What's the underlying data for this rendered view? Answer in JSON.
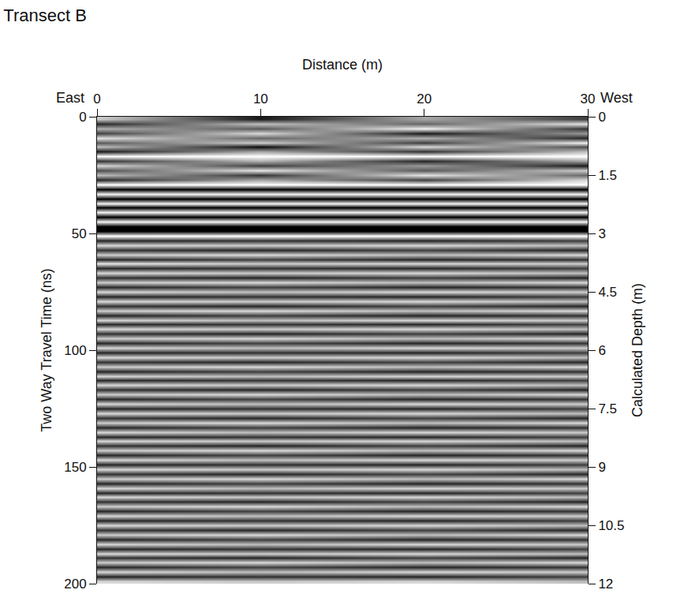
{
  "chart_data": {
    "type": "heatmap",
    "title": "Transect B",
    "x_label": "Distance (m)",
    "y_label": "Two Way Travel Time (ns)",
    "y2_label": "Calculated Depth (m)",
    "annotations": [
      "East",
      "West"
    ],
    "xlim": [
      0,
      30
    ],
    "xticks": [
      0,
      10,
      20,
      30
    ],
    "ylim": [
      0,
      200
    ],
    "yticks": [
      0,
      50,
      100,
      150,
      200
    ],
    "y2lim": [
      0,
      12
    ],
    "y2ticks": [
      0,
      1.5,
      3,
      4.5,
      6,
      7.5,
      9,
      10.5,
      12
    ],
    "colors": [
      "#000000",
      "#ffffff"
    ],
    "zlim": [
      -1,
      1
    ],
    "grid": false,
    "x": [
      0,
      10,
      20,
      30
    ],
    "time": [
      1,
      3,
      5,
      7,
      9,
      11,
      13,
      15,
      17,
      19,
      21,
      23,
      25,
      27,
      29,
      31,
      33,
      35,
      37,
      39,
      41,
      43,
      45,
      47,
      49,
      51,
      53,
      55,
      57,
      59,
      61,
      63,
      65,
      67,
      69,
      71,
      73,
      75,
      77,
      79,
      81,
      83,
      85,
      87,
      89,
      91,
      93,
      95,
      97,
      99,
      101,
      103,
      105,
      107,
      109,
      111,
      113,
      115,
      117,
      119,
      121,
      123,
      125,
      127,
      129,
      131,
      133,
      135,
      137,
      139,
      141,
      143,
      145,
      147,
      149,
      151,
      153,
      155,
      157,
      159,
      161,
      163,
      165,
      167,
      169,
      171,
      173,
      175,
      177,
      179,
      181,
      183,
      185,
      187,
      189,
      191,
      193,
      195,
      197,
      199
    ],
    "cells": [
      [
        0.6,
        -0.8,
        0.3,
        -0.5
      ],
      [
        -0.7,
        0.5,
        -0.2,
        0.8
      ],
      [
        0.4,
        -0.3,
        0.9,
        -0.6
      ],
      [
        -0.5,
        0.7,
        -0.8,
        0.2
      ],
      [
        0.8,
        -0.2,
        0.4,
        -0.7
      ],
      [
        -0.3,
        0.6,
        -0.5,
        0.9
      ],
      [
        0.5,
        -0.9,
        0.7,
        -0.4
      ],
      [
        -0.8,
        0.3,
        -0.6,
        0.5
      ],
      [
        1,
        1,
        1,
        1
      ],
      [
        -0.6,
        0.4,
        -0.7,
        0.3
      ],
      [
        0.7,
        -0.5,
        0.2,
        -0.8
      ],
      [
        -0.4,
        0.8,
        -0.3,
        0.6
      ],
      [
        0.5,
        -0.6,
        0.8,
        -0.2
      ],
      [
        -0.7,
        0.3,
        -0.5,
        0.7
      ],
      [
        1,
        1,
        1,
        1
      ],
      [
        -1,
        -1,
        -1,
        -1
      ],
      [
        0.9,
        0.9,
        0.9,
        0.9
      ],
      [
        -1,
        -1,
        -1,
        -1
      ],
      [
        0.9,
        0.9,
        0.9,
        0.9
      ],
      [
        -1,
        -1,
        -1,
        -1
      ],
      [
        0.9,
        0.9,
        0.9,
        0.9
      ],
      [
        -1,
        -1,
        -1,
        -1
      ],
      [
        0.9,
        0.9,
        0.9,
        0.9
      ],
      [
        -1,
        -1,
        -1,
        -1
      ],
      [
        -1,
        -1,
        -1,
        -1
      ],
      [
        1,
        1,
        1,
        1
      ],
      [
        -0.7,
        -0.6,
        -0.7,
        -0.5
      ],
      [
        0.7,
        0.6,
        0.7,
        0.5
      ],
      [
        -0.6,
        -0.7,
        -0.5,
        -0.7
      ],
      [
        0.6,
        0.7,
        0.5,
        0.7
      ],
      [
        -0.7,
        -0.5,
        -0.7,
        -0.6
      ],
      [
        0.8,
        0.6,
        0.7,
        0.6
      ],
      [
        -0.7,
        -0.6,
        -0.7,
        -0.5
      ],
      [
        0.7,
        0.6,
        0.7,
        0.5
      ],
      [
        -0.6,
        -0.7,
        -0.5,
        -0.7
      ],
      [
        0.6,
        0.7,
        0.5,
        0.7
      ],
      [
        -0.7,
        -0.5,
        -0.7,
        -0.6
      ],
      [
        0.7,
        0.5,
        0.7,
        0.6
      ],
      [
        -0.7,
        -0.6,
        -0.7,
        -0.5
      ],
      [
        0.7,
        0.6,
        0.7,
        0.5
      ],
      [
        -0.6,
        -0.7,
        -0.5,
        -0.7
      ],
      [
        0.6,
        0.7,
        0.5,
        0.7
      ],
      [
        -0.7,
        -0.5,
        -0.7,
        -0.6
      ],
      [
        0.7,
        0.5,
        0.7,
        0.6
      ],
      [
        -0.7,
        -0.6,
        -0.7,
        -0.5
      ],
      [
        0.7,
        0.6,
        0.7,
        0.5
      ],
      [
        -0.6,
        -0.7,
        -0.5,
        -0.7
      ],
      [
        0.6,
        0.7,
        0.5,
        0.7
      ],
      [
        -0.7,
        -0.5,
        -0.7,
        -0.6
      ],
      [
        0.7,
        0.5,
        0.7,
        0.6
      ],
      [
        -0.7,
        -0.6,
        -0.7,
        -0.5
      ],
      [
        0.7,
        0.6,
        0.7,
        0.5
      ],
      [
        -0.6,
        -0.7,
        -0.5,
        -0.7
      ],
      [
        0.6,
        0.7,
        0.5,
        0.7
      ],
      [
        -0.7,
        -0.5,
        -0.7,
        -0.6
      ],
      [
        0.7,
        0.5,
        0.7,
        0.6
      ],
      [
        -0.7,
        -0.6,
        -0.7,
        -0.5
      ],
      [
        0.7,
        0.6,
        0.7,
        0.5
      ],
      [
        -0.6,
        -0.7,
        -0.5,
        -0.7
      ],
      [
        0.6,
        0.7,
        0.5,
        0.7
      ],
      [
        -0.7,
        -0.5,
        -0.7,
        -0.6
      ],
      [
        0.7,
        0.5,
        0.7,
        0.6
      ],
      [
        -0.7,
        -0.6,
        -0.7,
        -0.5
      ],
      [
        0.7,
        0.6,
        0.7,
        0.5
      ],
      [
        -0.6,
        -0.7,
        -0.5,
        -0.7
      ],
      [
        0.6,
        0.7,
        0.5,
        0.7
      ],
      [
        -0.7,
        -0.5,
        -0.7,
        -0.6
      ],
      [
        0.7,
        0.5,
        0.7,
        0.6
      ],
      [
        -0.7,
        -0.6,
        -0.7,
        -0.5
      ],
      [
        0.7,
        0.6,
        0.7,
        0.5
      ],
      [
        -0.6,
        -0.7,
        -0.5,
        -0.7
      ],
      [
        0.6,
        0.7,
        0.5,
        0.7
      ],
      [
        -0.7,
        -0.5,
        -0.7,
        -0.6
      ],
      [
        0.7,
        0.5,
        0.7,
        0.6
      ],
      [
        -0.7,
        -0.6,
        -0.7,
        -0.5
      ],
      [
        0.7,
        0.6,
        0.7,
        0.5
      ],
      [
        -0.6,
        -0.7,
        -0.5,
        -0.7
      ],
      [
        0.6,
        0.7,
        0.5,
        0.7
      ],
      [
        -0.7,
        -0.5,
        -0.7,
        -0.6
      ],
      [
        0.7,
        0.5,
        0.7,
        0.6
      ],
      [
        -0.7,
        -0.6,
        -0.7,
        -0.5
      ],
      [
        0.7,
        0.6,
        0.7,
        0.5
      ],
      [
        -0.6,
        -0.7,
        -0.5,
        -0.7
      ],
      [
        0.6,
        0.7,
        0.5,
        0.7
      ],
      [
        -0.7,
        -0.5,
        -0.7,
        -0.6
      ],
      [
        0.7,
        0.5,
        0.7,
        0.6
      ],
      [
        -0.7,
        -0.6,
        -0.7,
        -0.5
      ],
      [
        0.7,
        0.6,
        0.7,
        0.5
      ],
      [
        -0.6,
        -0.7,
        -0.5,
        -0.7
      ],
      [
        0.6,
        0.7,
        0.5,
        0.7
      ],
      [
        -0.7,
        -0.5,
        -0.7,
        -0.6
      ],
      [
        0.7,
        0.5,
        0.7,
        0.6
      ],
      [
        -0.7,
        -0.6,
        -0.7,
        -0.5
      ],
      [
        0.7,
        0.6,
        0.7,
        0.5
      ],
      [
        -0.6,
        -0.7,
        -0.5,
        -0.7
      ],
      [
        0.6,
        0.7,
        0.5,
        0.7
      ],
      [
        -0.7,
        -0.5,
        -0.7,
        -0.6
      ],
      [
        0.7,
        0.5,
        0.7,
        0.6
      ],
      [
        -0.7,
        -0.6,
        -0.7,
        -0.5
      ],
      [
        0.7,
        0.6,
        0.7,
        0.5
      ]
    ]
  }
}
